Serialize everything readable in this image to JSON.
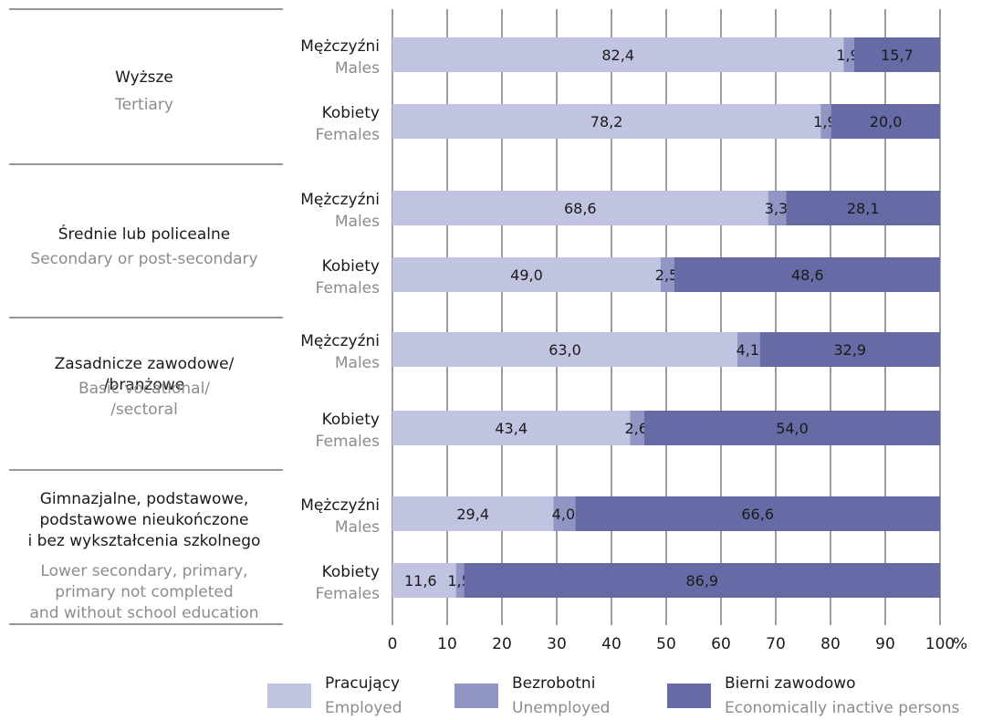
{
  "chart_data": {
    "type": "bar",
    "orientation": "horizontal",
    "stacked": true,
    "xlim": [
      0,
      100
    ],
    "x_ticks": [
      "0",
      "10",
      "20",
      "30",
      "40",
      "50",
      "60",
      "70",
      "80",
      "90",
      "100"
    ],
    "x_unit": "%",
    "grid": true,
    "groups": [
      {
        "label_pl": [
          "Wyższe"
        ],
        "label_en": [
          "Tertiary"
        ]
      },
      {
        "label_pl": [
          "Średnie lub policealne"
        ],
        "label_en": [
          "Secondary or post-secondary"
        ]
      },
      {
        "label_pl": [
          "Zasadnicze zawodowe/",
          "/branżowe"
        ],
        "label_en": [
          "Basic vocational/",
          "/sectoral"
        ]
      },
      {
        "label_pl": [
          "Gimnazjalne, podstawowe,",
          "podstawowe nieukończone",
          "i bez wykształcenia szkolnego"
        ],
        "label_en": [
          "Lower secondary, primary,",
          "primary not completed",
          "and without school education"
        ]
      }
    ],
    "sex_labels": [
      {
        "pl": "Mężczyźni",
        "en": "Males"
      },
      {
        "pl": "Kobiety",
        "en": "Females"
      }
    ],
    "series": [
      {
        "name_pl": "Pracujący",
        "name_en": "Employed",
        "color": "#c1c4e0",
        "values": [
          82.4,
          78.2,
          68.6,
          49.0,
          63.0,
          43.4,
          29.4,
          11.6
        ],
        "labels": [
          "82,4",
          "78,2",
          "68,6",
          "49,0",
          "63,0",
          "43,4",
          "29,4",
          "11,6"
        ]
      },
      {
        "name_pl": "Bezrobotni",
        "name_en": "Unemployed",
        "color": "#9195c4",
        "values": [
          1.9,
          1.9,
          3.3,
          2.5,
          4.1,
          2.6,
          4.0,
          1.5
        ],
        "labels": [
          "1,9",
          "1,9",
          "3,3",
          "2,5",
          "4,1",
          "2,6",
          "4,0",
          "1,5"
        ]
      },
      {
        "name_pl": "Bierni zawodowo",
        "name_en": "Economically inactive persons",
        "color": "#666aa5",
        "values": [
          15.7,
          20.0,
          28.1,
          48.6,
          32.9,
          54.0,
          66.6,
          86.9
        ],
        "labels": [
          "15,7",
          "20,0",
          "28,1",
          "48,6",
          "32,9",
          "54,0",
          "66,6",
          "86,9"
        ]
      }
    ]
  }
}
